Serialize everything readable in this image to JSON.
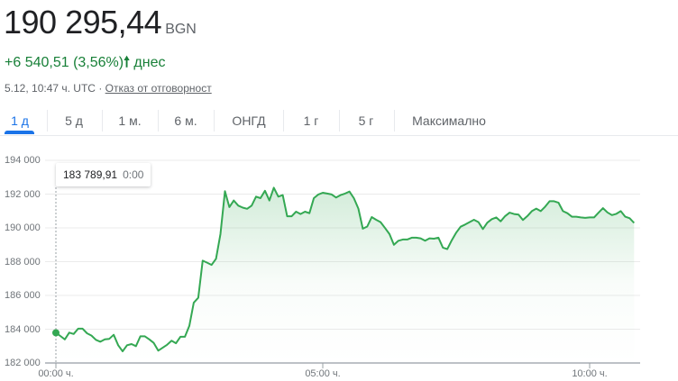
{
  "header": {
    "price": "190 295,44",
    "currency": "BGN",
    "change": "+6 540,51 (3,56%)",
    "change_arrow_icon": "arrow-up-icon",
    "change_suffix": "днес",
    "timestamp": "5.12, 10:47 ч. UTC",
    "separator": "·",
    "disclaimer_link": "Отказ от отговорност"
  },
  "tabs": [
    {
      "label": "1 д",
      "active": true
    },
    {
      "label": "5 д"
    },
    {
      "label": "1 м."
    },
    {
      "label": "6 м."
    },
    {
      "label": "ОНГД"
    },
    {
      "label": "1 г"
    },
    {
      "label": "5 г"
    },
    {
      "label": "Максимално"
    }
  ],
  "tooltip": {
    "value": "183 789,91",
    "time": "0:00"
  },
  "colors": {
    "line": "#34a853",
    "positive_text": "#188038",
    "accent": "#1a73e8"
  },
  "chart_data": {
    "type": "area",
    "title": "",
    "xlabel": "",
    "ylabel": "",
    "ylim": [
      182000,
      194000
    ],
    "xlim": [
      "00:00",
      "10:50"
    ],
    "grid": true,
    "yticks": [
      "182 000",
      "184 000",
      "186 000",
      "188 000",
      "190 000",
      "192 000",
      "194 000"
    ],
    "ytick_values": [
      182000,
      184000,
      186000,
      188000,
      190000,
      192000,
      194000
    ],
    "xticks": [
      "00:00 ч.",
      "05:00 ч.",
      "10:00 ч."
    ],
    "xtick_values": [
      "00:00",
      "05:00",
      "10:00"
    ],
    "points": [
      [
        "00:00",
        183789.91
      ],
      [
        "00:05",
        183600
      ],
      [
        "00:10",
        183400
      ],
      [
        "00:15",
        183800
      ],
      [
        "00:20",
        183720
      ],
      [
        "00:25",
        184030
      ],
      [
        "00:30",
        184030
      ],
      [
        "00:35",
        183760
      ],
      [
        "00:40",
        183620
      ],
      [
        "00:45",
        183370
      ],
      [
        "00:50",
        183260
      ],
      [
        "00:55",
        183400
      ],
      [
        "01:00",
        183430
      ],
      [
        "01:05",
        183670
      ],
      [
        "01:10",
        183050
      ],
      [
        "01:15",
        182690
      ],
      [
        "01:20",
        183050
      ],
      [
        "01:25",
        183120
      ],
      [
        "01:30",
        183000
      ],
      [
        "01:35",
        183580
      ],
      [
        "01:40",
        183580
      ],
      [
        "01:45",
        183400
      ],
      [
        "01:50",
        183190
      ],
      [
        "01:55",
        182730
      ],
      [
        "02:00",
        182900
      ],
      [
        "02:05",
        183080
      ],
      [
        "02:10",
        183320
      ],
      [
        "02:15",
        183170
      ],
      [
        "02:20",
        183550
      ],
      [
        "02:25",
        183550
      ],
      [
        "02:30",
        184200
      ],
      [
        "02:35",
        185570
      ],
      [
        "02:40",
        185860
      ],
      [
        "02:45",
        188060
      ],
      [
        "02:50",
        187940
      ],
      [
        "02:55",
        187810
      ],
      [
        "03:00",
        188170
      ],
      [
        "03:05",
        189630
      ],
      [
        "03:10",
        192170
      ],
      [
        "03:15",
        191230
      ],
      [
        "03:20",
        191620
      ],
      [
        "03:25",
        191320
      ],
      [
        "03:30",
        191200
      ],
      [
        "03:35",
        191130
      ],
      [
        "03:40",
        191320
      ],
      [
        "03:45",
        191850
      ],
      [
        "03:50",
        191760
      ],
      [
        "03:55",
        192200
      ],
      [
        "04:00",
        191620
      ],
      [
        "04:05",
        192380
      ],
      [
        "04:10",
        191850
      ],
      [
        "04:15",
        191940
      ],
      [
        "04:20",
        190690
      ],
      [
        "04:25",
        190690
      ],
      [
        "04:30",
        190960
      ],
      [
        "04:35",
        190820
      ],
      [
        "04:40",
        190960
      ],
      [
        "04:45",
        190870
      ],
      [
        "04:50",
        191760
      ],
      [
        "04:55",
        191980
      ],
      [
        "05:00",
        192080
      ],
      [
        "05:05",
        192030
      ],
      [
        "05:10",
        191980
      ],
      [
        "05:15",
        191800
      ],
      [
        "05:20",
        191940
      ],
      [
        "05:25",
        192030
      ],
      [
        "05:30",
        192150
      ],
      [
        "05:35",
        191760
      ],
      [
        "05:40",
        191140
      ],
      [
        "05:45",
        189950
      ],
      [
        "05:50",
        190080
      ],
      [
        "05:55",
        190640
      ],
      [
        "06:00",
        190480
      ],
      [
        "06:05",
        190340
      ],
      [
        "06:10",
        189990
      ],
      [
        "06:15",
        189630
      ],
      [
        "06:20",
        189000
      ],
      [
        "06:25",
        189240
      ],
      [
        "06:30",
        189310
      ],
      [
        "06:35",
        189310
      ],
      [
        "06:40",
        189420
      ],
      [
        "06:45",
        189420
      ],
      [
        "06:50",
        189380
      ],
      [
        "06:55",
        189240
      ],
      [
        "07:00",
        189380
      ],
      [
        "07:05",
        189360
      ],
      [
        "07:10",
        189420
      ],
      [
        "07:15",
        188830
      ],
      [
        "07:20",
        188740
      ],
      [
        "07:25",
        189270
      ],
      [
        "07:30",
        189720
      ],
      [
        "07:35",
        190070
      ],
      [
        "07:40",
        190200
      ],
      [
        "07:45",
        190340
      ],
      [
        "07:50",
        190480
      ],
      [
        "07:55",
        190340
      ],
      [
        "08:00",
        189930
      ],
      [
        "08:05",
        190310
      ],
      [
        "08:10",
        190520
      ],
      [
        "08:15",
        190620
      ],
      [
        "08:20",
        190390
      ],
      [
        "08:25",
        190700
      ],
      [
        "08:30",
        190900
      ],
      [
        "08:35",
        190820
      ],
      [
        "08:40",
        190790
      ],
      [
        "08:45",
        190470
      ],
      [
        "08:50",
        190700
      ],
      [
        "08:55",
        190990
      ],
      [
        "09:00",
        191140
      ],
      [
        "09:05",
        190990
      ],
      [
        "09:10",
        191260
      ],
      [
        "09:15",
        191580
      ],
      [
        "09:20",
        191580
      ],
      [
        "09:25",
        191490
      ],
      [
        "09:30",
        190990
      ],
      [
        "09:35",
        190870
      ],
      [
        "09:40",
        190660
      ],
      [
        "09:45",
        190660
      ],
      [
        "09:50",
        190620
      ],
      [
        "09:55",
        190590
      ],
      [
        "10:00",
        190620
      ],
      [
        "10:05",
        190620
      ],
      [
        "10:10",
        190900
      ],
      [
        "10:15",
        191170
      ],
      [
        "10:20",
        190920
      ],
      [
        "10:25",
        190760
      ],
      [
        "10:30",
        190830
      ],
      [
        "10:35",
        190990
      ],
      [
        "10:40",
        190660
      ],
      [
        "10:45",
        190570
      ],
      [
        "10:50",
        190295.44
      ]
    ]
  }
}
